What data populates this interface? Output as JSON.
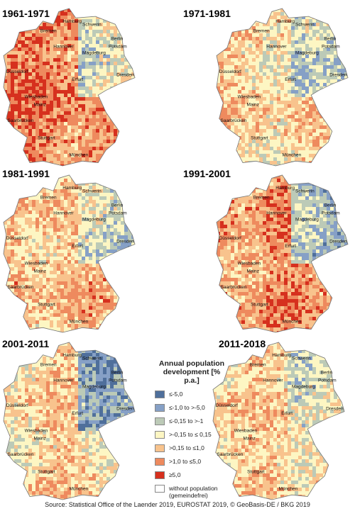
{
  "panels": [
    {
      "title": "1961-1971"
    },
    {
      "title": "1971-1981"
    },
    {
      "title": "1981-1991"
    },
    {
      "title": "1991-2001"
    },
    {
      "title": "2001-2011"
    },
    {
      "title": "2011-2018"
    }
  ],
  "cities": [
    "Hamburg",
    "Schwerin",
    "Bremen",
    "Berlin",
    "Hannover",
    "Potsdam",
    "Magdeburg",
    "Düsseldorf",
    "Erfurt",
    "Dresden",
    "Wiesbaden",
    "Mainz",
    "Saarbrücken",
    "Stuttgart",
    "München"
  ],
  "legend": {
    "title": "Annual population development [% p.a.]",
    "items": [
      {
        "label": "≤-5,0",
        "color": "#4f6f9b"
      },
      {
        "label": "≤-1,0 to >-5,0",
        "color": "#86a0c6"
      },
      {
        "label": "≤-0,15 to >-1",
        "color": "#bccab7"
      },
      {
        "label": ">-0,15 to ≤ 0,15",
        "color": "#fdf6c3"
      },
      {
        "label": ">0,15 to ≤1,0",
        "color": "#f8c38d"
      },
      {
        "label": ">1,0 to ≤5,0",
        "color": "#ee8a5e"
      },
      {
        "label": "≥5,0",
        "color": "#d6301e"
      },
      {
        "label": "without population (gemeindefrei)",
        "color": "#ffffff"
      }
    ]
  },
  "source": "Source: Statistical Office of the Laender 2019, EUROSTAT 2019, © GeoBasis-DE / BKG 2019"
}
